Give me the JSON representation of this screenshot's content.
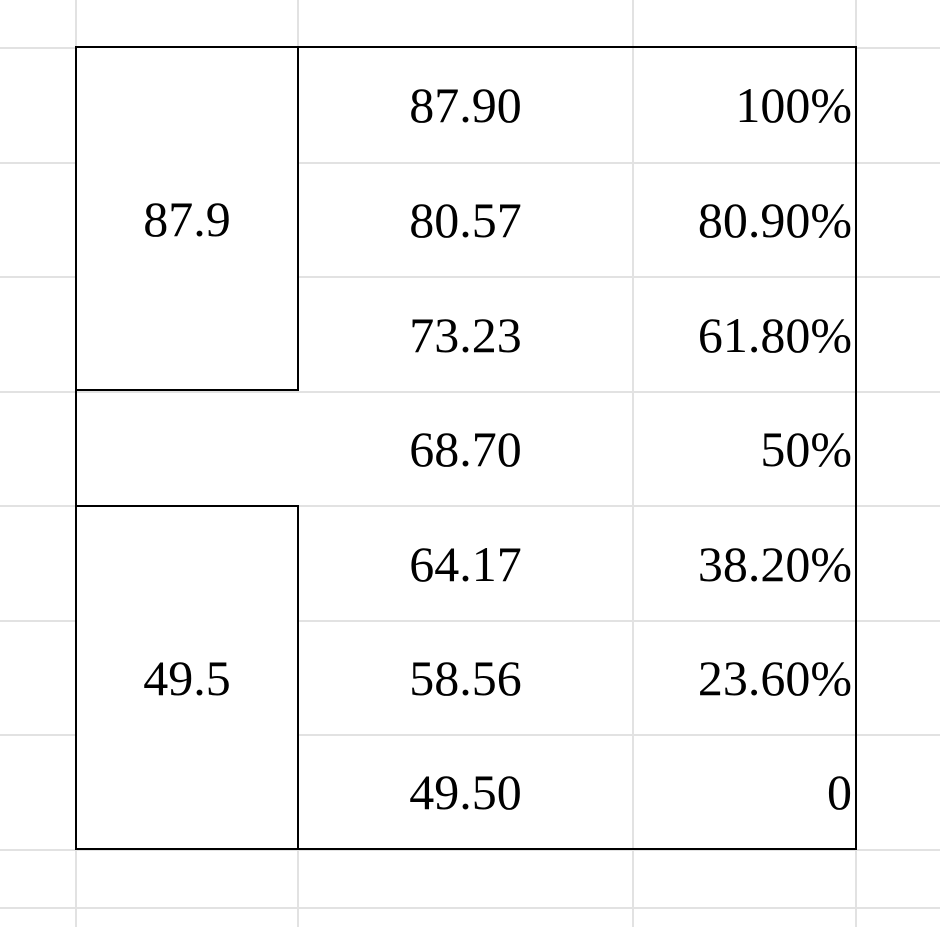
{
  "sheet": {
    "merged": [
      {
        "value": "87.9"
      },
      {
        "value": ""
      },
      {
        "value": "49.5"
      }
    ],
    "rows": [
      {
        "price": "87.90",
        "pct": "100%"
      },
      {
        "price": "80.57",
        "pct": "80.90%"
      },
      {
        "price": "73.23",
        "pct": "61.80%"
      },
      {
        "price": "68.70",
        "pct": "50%"
      },
      {
        "price": "64.17",
        "pct": "38.20%"
      },
      {
        "price": "58.56",
        "pct": "23.60%"
      },
      {
        "price": "49.50",
        "pct": "0"
      }
    ]
  },
  "colors": {
    "gridline": "#e2e2e2",
    "border": "#000000",
    "background": "#ffffff",
    "text": "#000000"
  }
}
